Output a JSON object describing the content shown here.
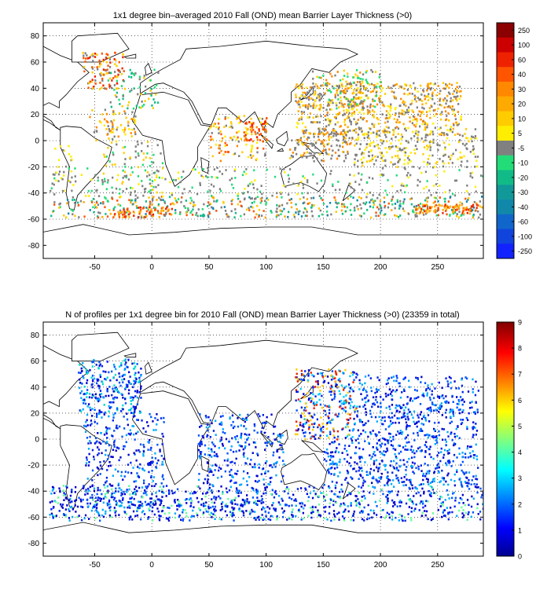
{
  "figure": {
    "background": "#ffffff"
  },
  "chart_data": [
    {
      "type": "heatmap",
      "title": "1x1 degree bin–averaged 2010 Fall (OND) mean Barrier Layer Thickness (>0)",
      "xlabel": "",
      "ylabel": "",
      "xlim": [
        -95,
        290
      ],
      "ylim": [
        -90,
        90
      ],
      "xticks": [
        -50,
        0,
        50,
        100,
        150,
        200,
        250
      ],
      "yticks": [
        -80,
        -60,
        -40,
        -20,
        0,
        20,
        40,
        60,
        80
      ],
      "grid": true,
      "colorbar": {
        "labels": [
          "250",
          "100",
          "60",
          "40",
          "30",
          "20",
          "10",
          "5",
          "-5",
          "-10",
          "-20",
          "-30",
          "-40",
          "-60",
          "-100",
          "-250"
        ],
        "colors": [
          "#8b0000",
          "#cc0000",
          "#ee2200",
          "#ff5500",
          "#ff8800",
          "#ffaa00",
          "#ffcc00",
          "#ffee00",
          "#808080",
          "#22dd77",
          "#11bb88",
          "#119999",
          "#1188aa",
          "#1166cc",
          "#1144dd",
          "#1122ff"
        ]
      },
      "clusters": [
        {
          "lon": [
            -62,
            -25
          ],
          "lat": [
            40,
            68
          ],
          "n": 110,
          "colors": [
            "#ee2200",
            "#ff5500",
            "#ffcc00",
            "#808080"
          ]
        },
        {
          "lon": [
            -40,
            5
          ],
          "lat": [
            25,
            55
          ],
          "n": 70,
          "colors": [
            "#808080",
            "#ffcc00",
            "#22dd77",
            "#11bb88"
          ]
        },
        {
          "lon": [
            -55,
            -15
          ],
          "lat": [
            0,
            25
          ],
          "n": 70,
          "colors": [
            "#ffcc00",
            "#ffee00",
            "#808080",
            "#ff8800"
          ]
        },
        {
          "lon": [
            -45,
            10
          ],
          "lat": [
            -45,
            0
          ],
          "n": 90,
          "colors": [
            "#808080",
            "#808080",
            "#22dd77",
            "#ffcc00"
          ]
        },
        {
          "lon": [
            -88,
            -70
          ],
          "lat": [
            -40,
            0
          ],
          "n": 25,
          "colors": [
            "#808080",
            "#ffee00"
          ]
        },
        {
          "lon": [
            -90,
            290
          ],
          "lat": [
            -58,
            -42
          ],
          "n": 520,
          "colors": [
            "#808080",
            "#808080",
            "#ffaa00",
            "#ffcc00",
            "#11bb88",
            "#22dd77",
            "#1188aa",
            "#ff5500"
          ]
        },
        {
          "lon": [
            -90,
            290
          ],
          "lat": [
            -42,
            -20
          ],
          "n": 260,
          "colors": [
            "#808080",
            "#808080",
            "#808080",
            "#ffee00",
            "#22dd77"
          ]
        },
        {
          "lon": [
            -40,
            20
          ],
          "lat": [
            -58,
            -50
          ],
          "n": 60,
          "colors": [
            "#ff5500",
            "#ee2200",
            "#ffaa00"
          ]
        },
        {
          "lon": [
            50,
            100
          ],
          "lat": [
            -15,
            20
          ],
          "n": 120,
          "colors": [
            "#ffcc00",
            "#ff8800",
            "#ff5500",
            "#808080",
            "#ffee00"
          ]
        },
        {
          "lon": [
            80,
            100
          ],
          "lat": [
            0,
            15
          ],
          "n": 40,
          "colors": [
            "#ff5500",
            "#ee2200",
            "#ff8800"
          ]
        },
        {
          "lon": [
            120,
            175
          ],
          "lat": [
            -15,
            10
          ],
          "n": 150,
          "colors": [
            "#808080",
            "#808080",
            "#ffcc00",
            "#ff8800"
          ]
        },
        {
          "lon": [
            125,
            270
          ],
          "lat": [
            5,
            45
          ],
          "n": 650,
          "colors": [
            "#ffee00",
            "#ffcc00",
            "#ffaa00",
            "#ff8800",
            "#808080",
            "#808080"
          ]
        },
        {
          "lon": [
            140,
            200
          ],
          "lat": [
            25,
            55
          ],
          "n": 150,
          "colors": [
            "#808080",
            "#ffcc00",
            "#22dd77",
            "#ff8800"
          ]
        },
        {
          "lon": [
            175,
            285
          ],
          "lat": [
            -20,
            10
          ],
          "n": 260,
          "colors": [
            "#808080",
            "#808080",
            "#ffee00",
            "#ffcc00"
          ]
        },
        {
          "lon": [
            230,
            285
          ],
          "lat": [
            -55,
            -48
          ],
          "n": 90,
          "colors": [
            "#ee2200",
            "#ff5500",
            "#ffaa00"
          ]
        }
      ]
    },
    {
      "type": "heatmap",
      "title": "N of profiles per 1x1 degree bin for 2010 Fall (OND) mean Barrier Layer Thickness (>0) (23359 in total)",
      "xlabel": "",
      "ylabel": "",
      "xlim": [
        -95,
        290
      ],
      "ylim": [
        -90,
        90
      ],
      "xticks": [
        -50,
        0,
        50,
        100,
        150,
        200,
        250
      ],
      "yticks": [
        -80,
        -60,
        -40,
        -20,
        0,
        20,
        40,
        60,
        80
      ],
      "grid": true,
      "colorbar": {
        "range": [
          0,
          9
        ],
        "ticks": [
          "0",
          "1",
          "2",
          "3",
          "4",
          "5",
          "6",
          "7",
          "8",
          "9"
        ]
      },
      "clusters": [
        {
          "lon": [
            -65,
            -10
          ],
          "lat": [
            20,
            62
          ],
          "n": 260,
          "colors": [
            "#0000cc",
            "#0022ee",
            "#0055ff",
            "#00aaff",
            "#00ddcc"
          ]
        },
        {
          "lon": [
            -60,
            10
          ],
          "lat": [
            -55,
            20
          ],
          "n": 330,
          "colors": [
            "#0000cc",
            "#0022ee",
            "#0055ff",
            "#00aaff"
          ]
        },
        {
          "lon": [
            -90,
            290
          ],
          "lat": [
            -62,
            -35
          ],
          "n": 900,
          "colors": [
            "#0000cc",
            "#0000cc",
            "#0022ee",
            "#0055ff",
            "#00aaff",
            "#66ff99"
          ]
        },
        {
          "lon": [
            40,
            115
          ],
          "lat": [
            -35,
            20
          ],
          "n": 280,
          "colors": [
            "#0000cc",
            "#0022ee",
            "#0055ff",
            "#00aaff"
          ]
        },
        {
          "lon": [
            125,
            180
          ],
          "lat": [
            0,
            55
          ],
          "n": 320,
          "colors": [
            "#0000cc",
            "#0022ee",
            "#0055ff",
            "#00ccff",
            "#ffcc00",
            "#ee2200"
          ]
        },
        {
          "lon": [
            180,
            285
          ],
          "lat": [
            0,
            50
          ],
          "n": 420,
          "colors": [
            "#0000cc",
            "#0022ee",
            "#0055ff",
            "#00aaff"
          ]
        },
        {
          "lon": [
            150,
            285
          ],
          "lat": [
            -35,
            0
          ],
          "n": 420,
          "colors": [
            "#0000cc",
            "#0022ee",
            "#0055ff",
            "#00aaff"
          ]
        }
      ]
    }
  ]
}
